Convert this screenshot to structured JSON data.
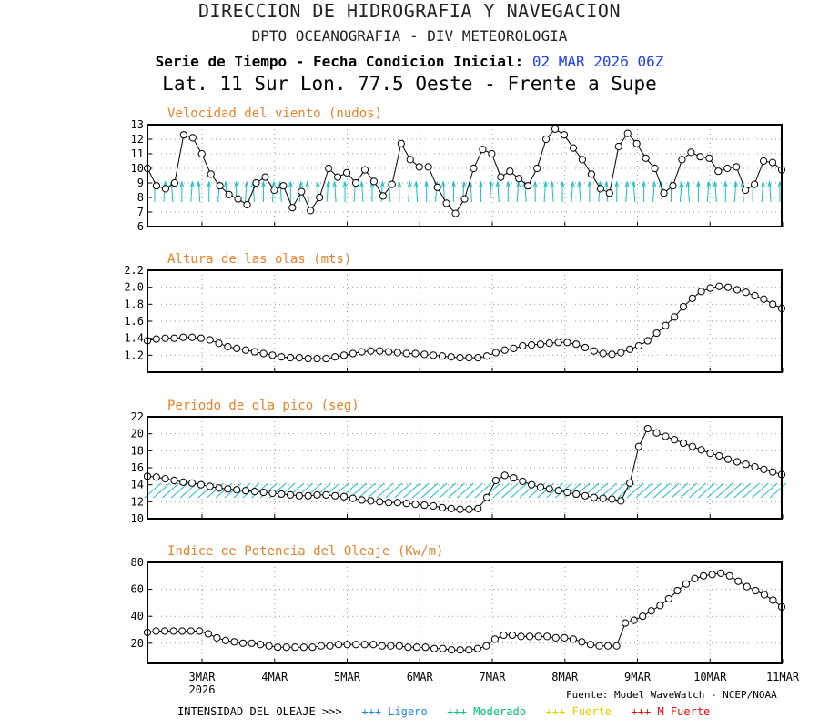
{
  "header": {
    "title": "DIRECCION DE HIDROGRAFIA Y NAVEGACION",
    "subtitle": "DPTO OCEANOGRAFIA - DIV METEOROLOGIA",
    "series_label": "Serie de Tiempo - Fecha Condicion Inicial:",
    "init_date": "02 MAR 2026 06Z",
    "location": "Lat. 11 Sur  Lon. 77.5 Oeste - Frente a Supe"
  },
  "x_axis": {
    "ticks": [
      "3MAR",
      "4MAR",
      "5MAR",
      "6MAR",
      "7MAR",
      "8MAR",
      "9MAR",
      "10MAR",
      "11MAR"
    ],
    "year_label": "2026"
  },
  "footer": {
    "intensity_label": "INTENSIDAD DEL OLEAJE >>>",
    "levels": [
      "+++ Ligero",
      "+++ Moderado",
      "+++ Fuerte",
      "+++ M Fuerte"
    ],
    "source": "Fuente: Model WaveWatch - NCEP/NOAA"
  },
  "colors": {
    "panel_title": "#e8822a",
    "direction_arrows": "#17c0c8",
    "light": "#1e88e5",
    "moderate": "#00c07a",
    "strong": "#e6d000",
    "very_strong": "#e01010"
  },
  "chart_data": [
    {
      "type": "line",
      "title": "Velocidad del viento (nudos)",
      "x_start": "02 MAR 2026 06Z",
      "x_step_hours": 3,
      "ylim": [
        6,
        13
      ],
      "yticks": [
        "6",
        "7",
        "8",
        "9",
        "10",
        "11",
        "12",
        "13"
      ],
      "grid": true,
      "direction_arrows": "wind direction, light cyan",
      "values": [
        10,
        8.8,
        8.6,
        9.0,
        12.3,
        12.1,
        11.0,
        9.6,
        8.8,
        8.2,
        7.9,
        7.5,
        9.0,
        9.4,
        8.5,
        8.8,
        7.3,
        8.4,
        7.1,
        8.0,
        10.0,
        9.4,
        9.7,
        9.0,
        9.9,
        9.1,
        8.1,
        8.9,
        11.7,
        10.6,
        10.1,
        10.1,
        8.7,
        7.6,
        6.9,
        7.9,
        10.0,
        11.3,
        11.0,
        9.4,
        9.8,
        9.3,
        8.8,
        10.0,
        12.0,
        12.7,
        12.3,
        11.4,
        10.6,
        9.6,
        8.6,
        8.3,
        11.5,
        12.4,
        11.7,
        10.7,
        10.0,
        8.3,
        8.8,
        10.6,
        11.1,
        10.8,
        10.7,
        9.8,
        10.0,
        10.1,
        8.5,
        8.9,
        10.5,
        10.4,
        9.9
      ]
    },
    {
      "type": "line",
      "title": "Altura de las olas (mts)",
      "x_start": "02 MAR 2026 06Z",
      "x_step_hours": 3,
      "ylim": [
        1.0,
        2.2
      ],
      "yticks": [
        "1.2",
        "1.4",
        "1.6",
        "1.8",
        "2.0",
        "2.2"
      ],
      "grid": true,
      "values": [
        1.37,
        1.39,
        1.4,
        1.4,
        1.41,
        1.41,
        1.4,
        1.38,
        1.34,
        1.3,
        1.28,
        1.26,
        1.24,
        1.22,
        1.2,
        1.18,
        1.17,
        1.17,
        1.16,
        1.16,
        1.16,
        1.18,
        1.2,
        1.22,
        1.24,
        1.25,
        1.25,
        1.24,
        1.23,
        1.22,
        1.22,
        1.21,
        1.2,
        1.19,
        1.18,
        1.17,
        1.17,
        1.17,
        1.19,
        1.23,
        1.26,
        1.28,
        1.31,
        1.32,
        1.33,
        1.34,
        1.35,
        1.35,
        1.33,
        1.29,
        1.25,
        1.22,
        1.21,
        1.23,
        1.27,
        1.31,
        1.37,
        1.46,
        1.55,
        1.65,
        1.77,
        1.87,
        1.95,
        1.99,
        2.01,
        2.0,
        1.97,
        1.94,
        1.9,
        1.86,
        1.8,
        1.75
      ]
    },
    {
      "type": "line",
      "title": "Periodo de ola pico (seg)",
      "x_start": "02 MAR 2026 06Z",
      "x_step_hours": 3,
      "ylim": [
        10,
        22
      ],
      "yticks": [
        "10",
        "12",
        "14",
        "16",
        "18",
        "20",
        "22"
      ],
      "grid": true,
      "direction_arrows": "wave direction, light cyan",
      "values": [
        15.0,
        14.9,
        14.7,
        14.5,
        14.3,
        14.2,
        14.0,
        13.8,
        13.6,
        13.5,
        13.4,
        13.3,
        13.2,
        13.1,
        13.0,
        12.9,
        12.8,
        12.7,
        12.7,
        12.8,
        12.8,
        12.7,
        12.6,
        12.4,
        12.2,
        12.1,
        12.0,
        11.9,
        11.9,
        11.8,
        11.7,
        11.6,
        11.5,
        11.3,
        11.2,
        11.1,
        11.1,
        11.2,
        12.5,
        14.5,
        15.1,
        14.8,
        14.4,
        14.0,
        13.7,
        13.5,
        13.3,
        13.1,
        12.9,
        12.7,
        12.5,
        12.4,
        12.3,
        12.1,
        14.2,
        18.5,
        20.6,
        20.1,
        19.7,
        19.3,
        18.9,
        18.5,
        18.1,
        17.7,
        17.4,
        17.0,
        16.7,
        16.4,
        16.1,
        15.8,
        15.5,
        15.2
      ]
    },
    {
      "type": "line",
      "title": "Indice de Potencia del Oleaje (Kw/m)",
      "x_start": "02 MAR 2026 06Z",
      "x_step_hours": 3,
      "ylim": [
        5,
        80
      ],
      "yticks": [
        "20",
        "40",
        "60",
        "80"
      ],
      "grid": true,
      "values": [
        28,
        29,
        29,
        29,
        29,
        29,
        29,
        27,
        24,
        22,
        21,
        20,
        20,
        19,
        18,
        17,
        17,
        17,
        17,
        17,
        18,
        18,
        19,
        19,
        19,
        19,
        19,
        18,
        18,
        18,
        17,
        17,
        17,
        16,
        16,
        15,
        15,
        15,
        16,
        18,
        23,
        26,
        26,
        25,
        25,
        25,
        25,
        24,
        24,
        23,
        21,
        19,
        18,
        18,
        18,
        35,
        37,
        40,
        44,
        48,
        53,
        59,
        64,
        68,
        70,
        71,
        72,
        70,
        66,
        62,
        59,
        56,
        52,
        47
      ]
    }
  ]
}
